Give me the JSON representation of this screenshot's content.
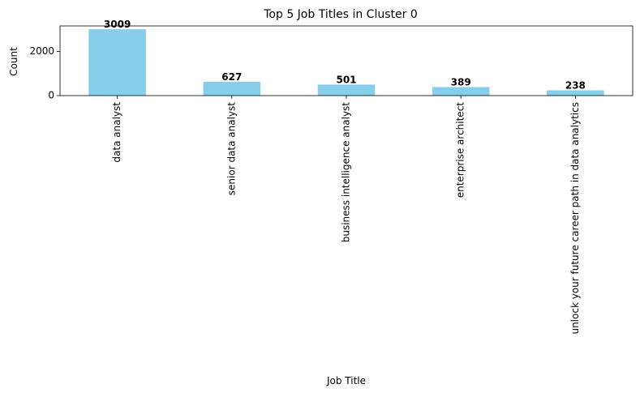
{
  "chart_data": {
    "type": "bar",
    "title": "Top 5 Job Titles in Cluster 0",
    "xlabel": "Job Title",
    "ylabel": "Count",
    "categories": [
      "data analyst",
      "senior data analyst",
      "business intelligence analyst",
      "enterprise architect",
      "unlock your future career path in data analytics"
    ],
    "values": [
      3009,
      627,
      501,
      389,
      238
    ],
    "ylim": [
      0,
      3159
    ],
    "yticks": [
      0,
      2000
    ],
    "bar_color": "#87ceeb",
    "grid": false
  }
}
